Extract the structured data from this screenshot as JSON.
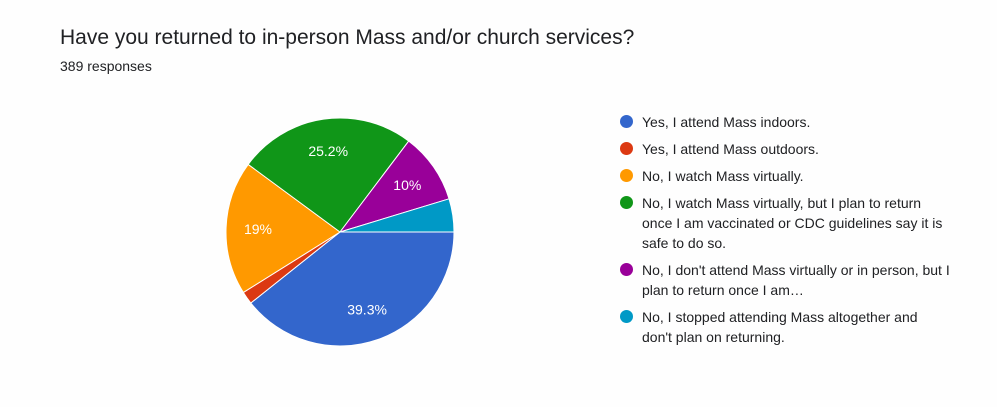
{
  "title": "Have you returned to in-person Mass and/or church services?",
  "responses_text": "389 responses",
  "chart_data": {
    "type": "pie",
    "categories": [
      "Yes, I attend Mass indoors.",
      "Yes, I attend Mass outdoors.",
      "No, I watch Mass virtually.",
      "No, I watch Mass virtually, but I plan to return once I am vaccinated or CDC guidelines say it is safe to do so.",
      "No, I don't attend Mass virtually or in person, but I plan to return once I am…",
      "No, I stopped attending Mass altogether and don't plan on returning."
    ],
    "values": [
      39.3,
      1.8,
      19,
      25.2,
      10,
      4.7
    ],
    "value_labels": [
      "39.3%",
      "",
      "19%",
      "25.2%",
      "10%",
      ""
    ],
    "colors": [
      "#3366cc",
      "#dc3912",
      "#ff9900",
      "#109618",
      "#990099",
      "#0099c6"
    ],
    "legend_position": "right"
  }
}
